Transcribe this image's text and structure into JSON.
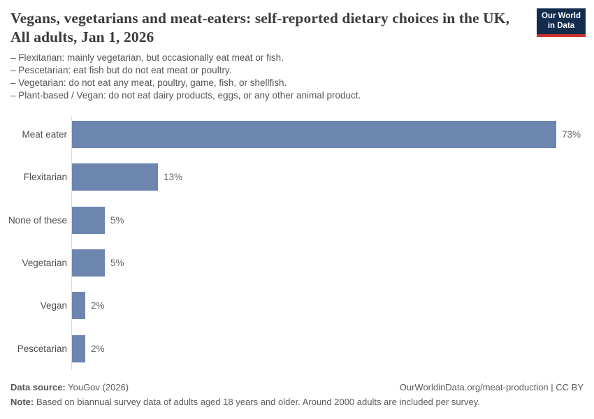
{
  "header": {
    "title": "Vegans, vegetarians and meat-eaters: self-reported dietary choices in the UK, All adults, Jan 1, 2026",
    "logo": {
      "line1": "Our World",
      "line2": "in Data"
    }
  },
  "subtitle_lines": [
    "– Flexitarian: mainly vegetarian, but occasionally eat meat or fish.",
    "– Pescetarian: eat fish but do not eat meat or poultry.",
    "– Vegetarian: do not eat any meat, poultry, game, fish, or shellfish.",
    "– Plant-based / Vegan: do not eat dairy products, eggs, or any other animal product."
  ],
  "chart_data": {
    "type": "bar",
    "orientation": "horizontal",
    "title": "Vegans, vegetarians and meat-eaters: self-reported dietary choices in the UK, All adults, Jan 1, 2026",
    "categories": [
      "Meat eater",
      "Flexitarian",
      "None of these",
      "Vegetarian",
      "Vegan",
      "Pescetarian"
    ],
    "values": [
      73,
      13,
      5,
      5,
      2,
      2
    ],
    "value_labels": [
      "73%",
      "13%",
      "5%",
      "5%",
      "2%",
      "2%"
    ],
    "unit": "%",
    "xlabel": "",
    "ylabel": "",
    "xlim": [
      0,
      73
    ],
    "grid": false,
    "legend": false,
    "bar_color": "#6d86af",
    "axis_color": "#d9d9d9"
  },
  "footer": {
    "source_label": "Data source:",
    "source_value": " YouGov (2026)",
    "attribution": "OurWorldinData.org/meat-production | CC BY",
    "note_label": "Note:",
    "note_value": " Based on biannual survey data of adults aged 18 years and older. Around 2000 adults are included per survey."
  },
  "colors": {
    "bar": "#6d86af",
    "axis": "#d9d9d9",
    "title": "#3b3b3b",
    "text": "#555555",
    "logo_bg": "#132c4d",
    "logo_accent": "#d0342c"
  }
}
